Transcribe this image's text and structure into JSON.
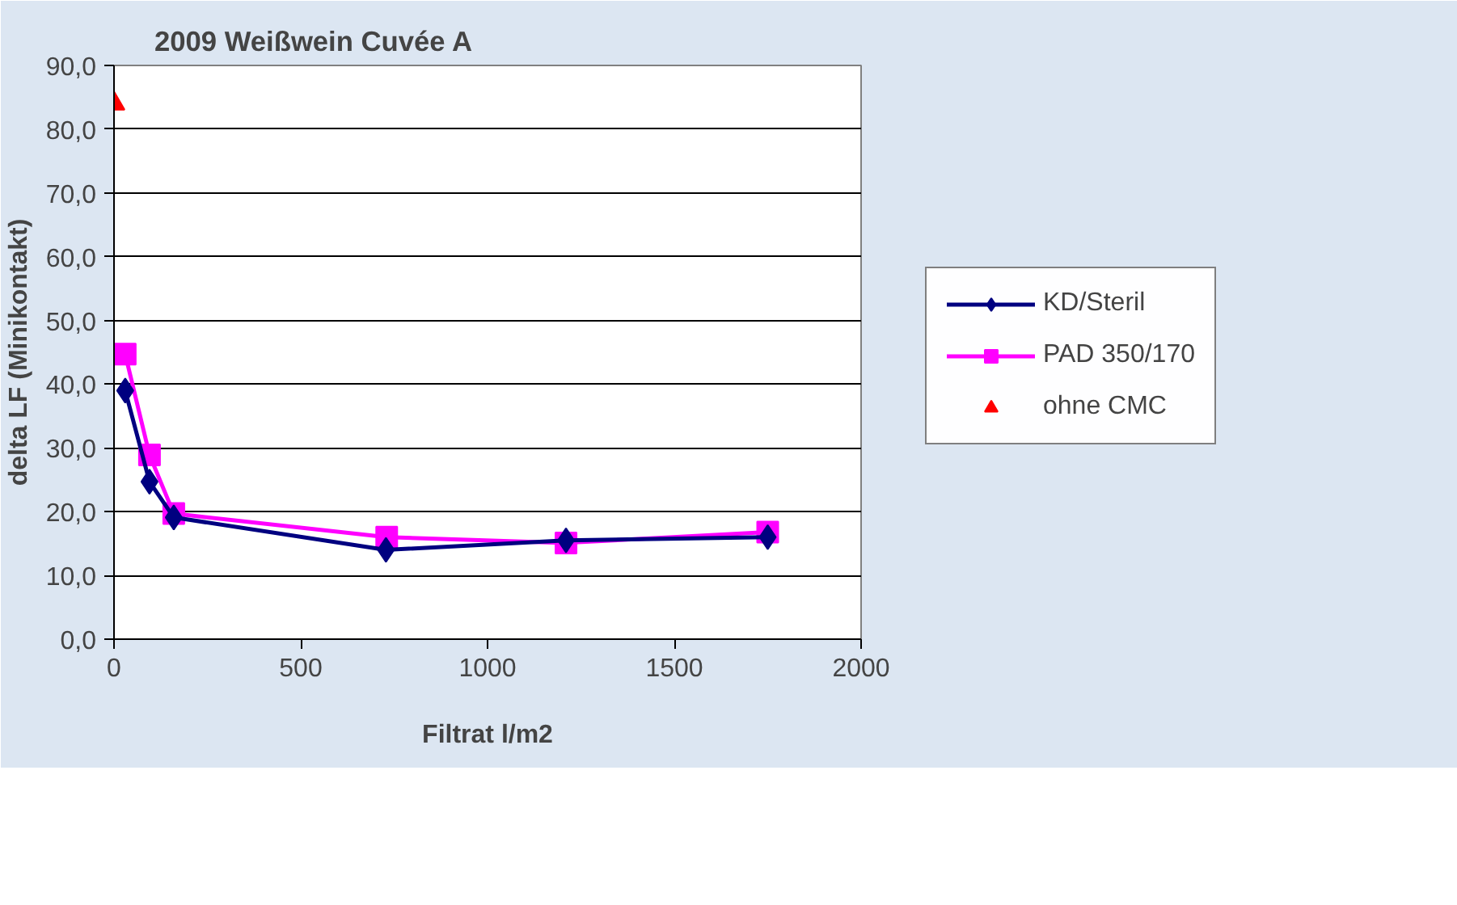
{
  "chart_data": {
    "type": "line",
    "title": "2009 Weißwein Cuvée A",
    "xlabel": "Filtrat l/m2",
    "ylabel": "delta LF (Minikontakt)",
    "xlim": [
      0,
      2000
    ],
    "xticks": [
      0,
      500,
      1000,
      1500,
      2000
    ],
    "ylim": [
      0,
      90
    ],
    "yticks": [
      {
        "value": 0,
        "label": "0,0"
      },
      {
        "value": 10,
        "label": "10,0"
      },
      {
        "value": 20,
        "label": "20,0"
      },
      {
        "value": 30,
        "label": "30,0"
      },
      {
        "value": 40,
        "label": "40,0"
      },
      {
        "value": 50,
        "label": "50,0"
      },
      {
        "value": 60,
        "label": "60,0"
      },
      {
        "value": 70,
        "label": "70,0"
      },
      {
        "value": 80,
        "label": "80,0"
      },
      {
        "value": 90,
        "label": "90,0"
      }
    ],
    "grid": "y",
    "legend": "right",
    "series": [
      {
        "name": "KD/Steril",
        "color": "#000080",
        "marker": "diamond",
        "x": [
          30,
          95,
          160,
          728,
          1210,
          1750
        ],
        "values": [
          39.0,
          24.7,
          19.1,
          14.0,
          15.5,
          16.0
        ]
      },
      {
        "name": "PAD 350/170",
        "color": "#ff00ff",
        "marker": "square",
        "x": [
          30,
          95,
          160,
          730,
          1210,
          1750
        ],
        "values": [
          44.7,
          28.9,
          19.7,
          16.0,
          15.1,
          16.8
        ]
      },
      {
        "name": "ohne CMC",
        "color": "#ff0000",
        "marker": "triangle",
        "x": [
          0
        ],
        "values": [
          84.0
        ]
      }
    ]
  }
}
